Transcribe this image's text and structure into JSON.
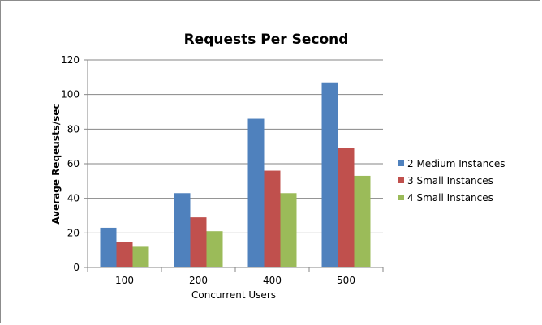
{
  "chart_data": {
    "type": "bar",
    "title": "Requests Per Second",
    "xlabel": "Concurrent Users",
    "ylabel": "Average Reqeusts/sec",
    "categories": [
      "100",
      "200",
      "400",
      "500"
    ],
    "series": [
      {
        "name": "2 Medium Instances",
        "color": "#4f81bd",
        "values": [
          23,
          43,
          86,
          107
        ]
      },
      {
        "name": "3 Small Instances",
        "color": "#c0504d",
        "values": [
          15,
          29,
          56,
          69
        ]
      },
      {
        "name": "4 Small Instances",
        "color": "#9bbb59",
        "values": [
          12,
          21,
          43,
          53
        ]
      }
    ],
    "ylim": [
      0,
      120
    ],
    "yticks": [
      0,
      20,
      40,
      60,
      80,
      100,
      120
    ],
    "grid": true,
    "legend_position": "right"
  }
}
